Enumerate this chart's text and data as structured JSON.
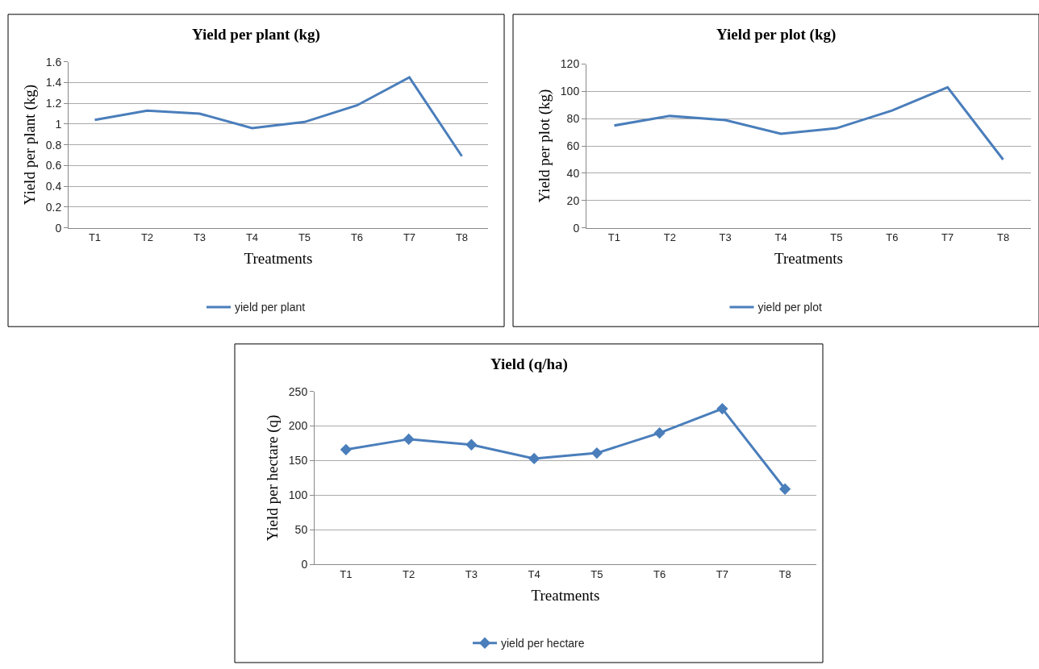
{
  "chart_data": [
    {
      "type": "line",
      "title": "Yield per plant (kg)",
      "xlabel": "Treatments",
      "ylabel": "Yield per plant (kg)",
      "categories": [
        "T1",
        "T2",
        "T3",
        "T4",
        "T5",
        "T6",
        "T7",
        "T8"
      ],
      "series": [
        {
          "name": "yield per plant",
          "color": "#4a7ebb",
          "values": [
            1.04,
            1.13,
            1.1,
            0.96,
            1.02,
            1.18,
            1.45,
            0.69
          ]
        }
      ],
      "ylim": [
        0,
        1.6
      ],
      "yticks": [
        0,
        0.2,
        0.4,
        0.6,
        0.8,
        1,
        1.2,
        1.4,
        1.6
      ],
      "grid": "y",
      "legend": "bottom"
    },
    {
      "type": "line",
      "title": "Yield per plot (kg)",
      "xlabel": "Treatments",
      "ylabel": "Yield per plot (kg)",
      "categories": [
        "T1",
        "T2",
        "T3",
        "T4",
        "T5",
        "T6",
        "T7",
        "T8"
      ],
      "series": [
        {
          "name": "yield per plot",
          "color": "#4a7ebb",
          "values": [
            75,
            82,
            79,
            69,
            73,
            86,
            103,
            50
          ]
        }
      ],
      "ylim": [
        0,
        120
      ],
      "yticks": [
        0,
        20,
        40,
        60,
        80,
        100,
        120
      ],
      "grid": "y",
      "legend": "bottom"
    },
    {
      "type": "line",
      "title": "Yield (q/ha)",
      "xlabel": "Treatments",
      "ylabel": "Yield per hectare (q)",
      "categories": [
        "T1",
        "T2",
        "T3",
        "T4",
        "T5",
        "T6",
        "T7",
        "T8"
      ],
      "series": [
        {
          "name": "yield per hectare",
          "color": "#4a7ebb",
          "values": [
            166,
            181,
            173,
            153,
            161,
            190,
            225,
            109
          ]
        }
      ],
      "ylim": [
        0,
        250
      ],
      "yticks": [
        0,
        50,
        100,
        150,
        200,
        250
      ],
      "grid": "y",
      "legend": "bottom",
      "marker": "diamond"
    }
  ]
}
